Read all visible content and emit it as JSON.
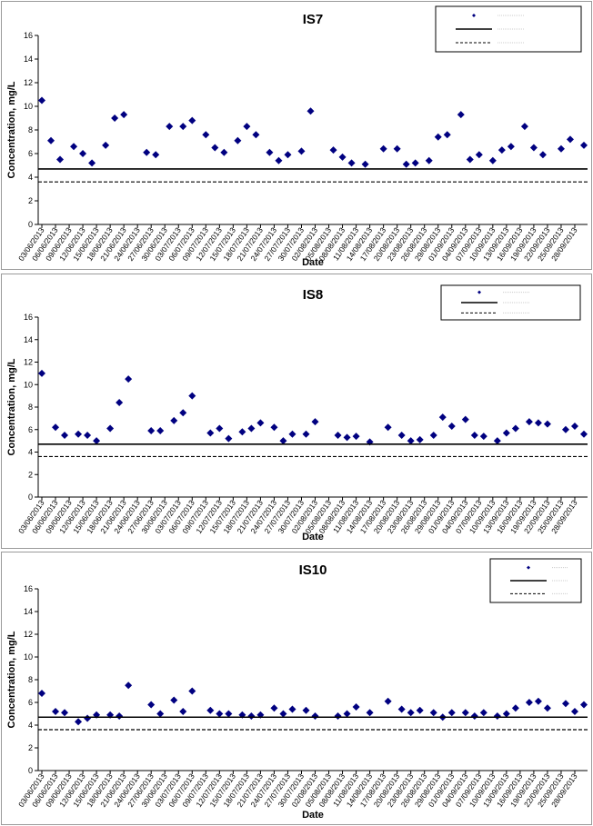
{
  "chart_data": [
    {
      "type": "scatter",
      "title": "IS7",
      "xlabel": "Date",
      "ylabel": "Concentration, mg/L",
      "ylim": [
        0,
        16
      ],
      "yticks": [
        0,
        2,
        4,
        6,
        8,
        10,
        12,
        14,
        16
      ],
      "x_tick_labels": [
        "03/06/2013",
        "06/06/2013",
        "09/06/2013",
        "12/06/2013",
        "15/06/2013",
        "18/06/2013",
        "21/06/2013",
        "24/06/2013",
        "27/06/2013",
        "30/06/2013",
        "03/07/2013",
        "06/07/2013",
        "09/07/2013",
        "12/07/2013",
        "15/07/2013",
        "18/07/2013",
        "21/07/2013",
        "24/07/2013",
        "27/07/2013",
        "30/07/2013",
        "02/08/2013",
        "05/08/2013",
        "08/08/2013",
        "11/08/2013",
        "14/08/2013",
        "17/08/2013",
        "20/08/2013",
        "23/08/2013",
        "26/08/2013",
        "29/08/2013",
        "01/09/2013",
        "04/09/2013",
        "07/09/2013",
        "10/09/2013",
        "13/09/2013",
        "16/09/2013",
        "19/09/2013",
        "22/09/2013",
        "25/09/2013",
        "28/09/2013"
      ],
      "x_range": [
        "03/06/2013",
        "30/09/2013"
      ],
      "grid": false,
      "legend_position": "top-right",
      "series": [
        {
          "type": "scatter",
          "marker": "diamond",
          "color": "#000080",
          "x": [
            "03/06/2013",
            "05/06/2013",
            "07/06/2013",
            "10/06/2013",
            "12/06/2013",
            "14/06/2013",
            "17/06/2013",
            "19/06/2013",
            "21/06/2013",
            "26/06/2013",
            "28/06/2013",
            "01/07/2013",
            "04/07/2013",
            "06/07/2013",
            "09/07/2013",
            "11/07/2013",
            "13/07/2013",
            "16/07/2013",
            "18/07/2013",
            "20/07/2013",
            "23/07/2013",
            "25/07/2013",
            "27/07/2013",
            "30/07/2013",
            "01/08/2013",
            "06/08/2013",
            "08/08/2013",
            "10/08/2013",
            "13/08/2013",
            "17/08/2013",
            "20/08/2013",
            "22/08/2013",
            "24/08/2013",
            "27/08/2013",
            "29/08/2013",
            "31/08/2013",
            "03/09/2013",
            "05/09/2013",
            "07/09/2013",
            "10/09/2013",
            "12/09/2013",
            "14/09/2013",
            "17/09/2013",
            "19/09/2013",
            "21/09/2013",
            "25/09/2013",
            "27/09/2013",
            "30/09/2013"
          ],
          "y": [
            10.5,
            7.1,
            5.5,
            6.6,
            6.0,
            5.2,
            6.7,
            9.0,
            9.3,
            6.1,
            5.9,
            8.3,
            8.3,
            8.8,
            7.6,
            6.5,
            6.1,
            7.1,
            8.3,
            7.6,
            6.1,
            5.4,
            5.9,
            6.2,
            9.6,
            6.3,
            5.7,
            5.2,
            5.1,
            6.4,
            6.4,
            5.1,
            5.2,
            5.4,
            7.4,
            7.6,
            9.3,
            5.5,
            5.9,
            5.4,
            6.3,
            6.6,
            8.3,
            6.5,
            5.9,
            6.4,
            7.2,
            6.7
          ]
        },
        {
          "type": "line",
          "style": "solid",
          "color": "#000000",
          "y_value": 4.7
        },
        {
          "type": "line",
          "style": "dashed",
          "color": "#000000",
          "y_value": 3.6
        }
      ]
    },
    {
      "type": "scatter",
      "title": "IS8",
      "xlabel": "Date",
      "ylabel": "Concentration, mg/L",
      "ylim": [
        0,
        16
      ],
      "yticks": [
        0,
        2,
        4,
        6,
        8,
        10,
        12,
        14,
        16
      ],
      "x_tick_labels": [
        "03/06/2013",
        "06/06/2013",
        "09/06/2013",
        "12/06/2013",
        "15/06/2013",
        "18/06/2013",
        "21/06/2013",
        "24/06/2013",
        "27/06/2013",
        "30/06/2013",
        "03/07/2013",
        "06/07/2013",
        "09/07/2013",
        "12/07/2013",
        "15/07/2013",
        "18/07/2013",
        "21/07/2013",
        "24/07/2013",
        "27/07/2013",
        "30/07/2013",
        "02/08/2013",
        "05/08/2013",
        "08/08/2013",
        "11/08/2013",
        "14/08/2013",
        "17/08/2013",
        "20/08/2013",
        "23/08/2013",
        "26/08/2013",
        "29/08/2013",
        "01/09/2013",
        "04/09/2013",
        "07/09/2013",
        "10/09/2013",
        "13/09/2013",
        "16/09/2013",
        "19/09/2013",
        "22/09/2013",
        "25/09/2013",
        "28/09/2013"
      ],
      "x_range": [
        "03/06/2013",
        "30/09/2013"
      ],
      "grid": false,
      "legend_position": "top-right",
      "series": [
        {
          "type": "scatter",
          "marker": "diamond",
          "color": "#000080",
          "x": [
            "03/06/2013",
            "06/06/2013",
            "08/06/2013",
            "11/06/2013",
            "13/06/2013",
            "15/06/2013",
            "18/06/2013",
            "20/06/2013",
            "22/06/2013",
            "27/06/2013",
            "29/06/2013",
            "02/07/2013",
            "04/07/2013",
            "06/07/2013",
            "10/07/2013",
            "12/07/2013",
            "14/07/2013",
            "17/07/2013",
            "19/07/2013",
            "21/07/2013",
            "24/07/2013",
            "26/07/2013",
            "28/07/2013",
            "31/07/2013",
            "02/08/2013",
            "07/08/2013",
            "09/08/2013",
            "11/08/2013",
            "14/08/2013",
            "18/08/2013",
            "21/08/2013",
            "23/08/2013",
            "25/08/2013",
            "28/08/2013",
            "30/08/2013",
            "01/09/2013",
            "04/09/2013",
            "06/09/2013",
            "08/09/2013",
            "11/09/2013",
            "13/09/2013",
            "15/09/2013",
            "18/09/2013",
            "20/09/2013",
            "22/09/2013",
            "26/09/2013",
            "28/09/2013",
            "30/09/2013"
          ],
          "y": [
            11.0,
            6.2,
            5.5,
            5.6,
            5.5,
            5.0,
            6.1,
            8.4,
            10.5,
            5.9,
            5.9,
            6.8,
            7.5,
            9.0,
            5.7,
            6.1,
            5.2,
            5.8,
            6.1,
            6.6,
            6.2,
            5.0,
            5.6,
            5.6,
            6.7,
            5.5,
            5.3,
            5.4,
            4.9,
            6.2,
            5.5,
            5.0,
            5.1,
            5.5,
            7.1,
            6.3,
            6.9,
            5.5,
            5.4,
            5.0,
            5.7,
            6.1,
            6.7,
            6.6,
            6.5,
            6.0,
            6.3,
            5.6
          ]
        },
        {
          "type": "line",
          "style": "solid",
          "color": "#000000",
          "y_value": 4.7
        },
        {
          "type": "line",
          "style": "dashed",
          "color": "#000000",
          "y_value": 3.6
        }
      ]
    },
    {
      "type": "scatter",
      "title": "IS10",
      "xlabel": "Date",
      "ylabel": "Concentration, mg/L",
      "ylim": [
        0,
        16
      ],
      "yticks": [
        0,
        2,
        4,
        6,
        8,
        10,
        12,
        14,
        16
      ],
      "x_tick_labels": [
        "03/06/2013",
        "06/06/2013",
        "09/06/2013",
        "12/06/2013",
        "15/06/2013",
        "18/06/2013",
        "21/06/2013",
        "24/06/2013",
        "27/06/2013",
        "30/06/2013",
        "03/07/2013",
        "06/07/2013",
        "09/07/2013",
        "12/07/2013",
        "15/07/2013",
        "18/07/2013",
        "21/07/2013",
        "24/07/2013",
        "27/07/2013",
        "30/07/2013",
        "02/08/2013",
        "05/08/2013",
        "08/08/2013",
        "11/08/2013",
        "14/08/2013",
        "17/08/2013",
        "20/08/2013",
        "23/08/2013",
        "26/08/2013",
        "29/08/2013",
        "01/09/2013",
        "04/09/2013",
        "07/09/2013",
        "10/09/2013",
        "13/09/2013",
        "16/09/2013",
        "19/09/2013",
        "22/09/2013",
        "25/09/2013",
        "28/09/2013"
      ],
      "x_range": [
        "03/06/2013",
        "30/09/2013"
      ],
      "grid": false,
      "legend_position": "top-right",
      "series": [
        {
          "type": "scatter",
          "marker": "diamond",
          "color": "#000080",
          "x": [
            "03/06/2013",
            "06/06/2013",
            "08/06/2013",
            "11/06/2013",
            "13/06/2013",
            "15/06/2013",
            "18/06/2013",
            "20/06/2013",
            "22/06/2013",
            "27/06/2013",
            "29/06/2013",
            "02/07/2013",
            "04/07/2013",
            "06/07/2013",
            "10/07/2013",
            "12/07/2013",
            "14/07/2013",
            "17/07/2013",
            "19/07/2013",
            "21/07/2013",
            "24/07/2013",
            "26/07/2013",
            "28/07/2013",
            "31/07/2013",
            "02/08/2013",
            "07/08/2013",
            "09/08/2013",
            "11/08/2013",
            "14/08/2013",
            "18/08/2013",
            "21/08/2013",
            "23/08/2013",
            "25/08/2013",
            "28/08/2013",
            "30/08/2013",
            "01/09/2013",
            "04/09/2013",
            "06/09/2013",
            "08/09/2013",
            "11/09/2013",
            "13/09/2013",
            "15/09/2013",
            "18/09/2013",
            "20/09/2013",
            "22/09/2013",
            "26/09/2013",
            "28/09/2013",
            "30/09/2013"
          ],
          "y": [
            6.8,
            5.2,
            5.1,
            4.3,
            4.6,
            4.9,
            4.9,
            4.8,
            7.5,
            5.8,
            5.0,
            6.2,
            5.2,
            7.0,
            5.3,
            5.0,
            5.0,
            4.9,
            4.8,
            4.9,
            5.5,
            5.0,
            5.4,
            5.3,
            4.8,
            4.8,
            5.0,
            5.6,
            5.1,
            6.1,
            5.4,
            5.1,
            5.3,
            5.1,
            4.7,
            5.1,
            5.1,
            4.8,
            5.1,
            4.8,
            5.0,
            5.5,
            6.0,
            6.1,
            5.5,
            5.9,
            5.2,
            5.8
          ]
        },
        {
          "type": "line",
          "style": "solid",
          "color": "#000000",
          "y_value": 4.7
        },
        {
          "type": "line",
          "style": "dashed",
          "color": "#000000",
          "y_value": 3.6
        }
      ]
    }
  ]
}
